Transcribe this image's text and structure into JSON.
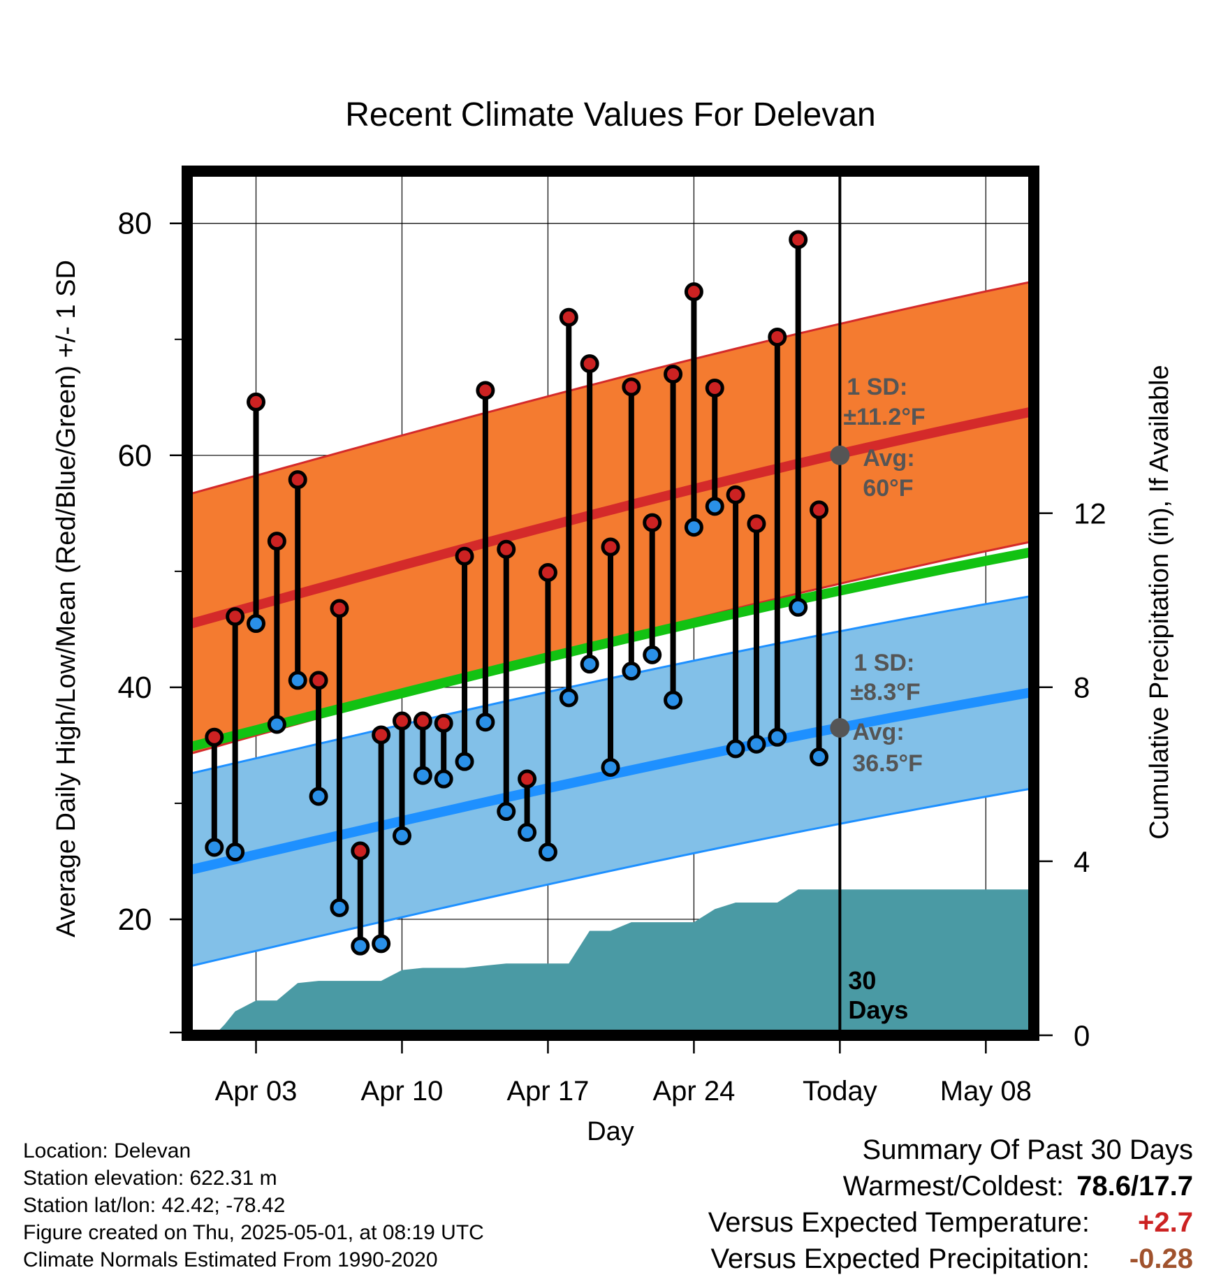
{
  "colors": {
    "high_band": "#f47b30",
    "high_line": "#d42a2a",
    "mean_line": "#12c212",
    "low_band": "#82c0e8",
    "low_line": "#1e90ff",
    "precip": "#4a9aa4",
    "high_dot": "#cc2222",
    "low_dot": "#2a90e8",
    "today_dot": "#555555",
    "annotation": "#555555",
    "temp_anomaly": "#cc2222",
    "precip_anomaly": "#a0522d"
  },
  "chart_data": {
    "type": "line",
    "title": "Recent Climate Values For Delevan",
    "xlabel": "Day",
    "ylabel": "Average Daily High/Low/Mean (Red/Blue/Green) +/- 1 SD",
    "y2label": "Cumulative Precipitation (in), If Available",
    "x_tick_labels": [
      "Apr 03",
      "Apr 10",
      "Apr 17",
      "Apr 24",
      "Today",
      "May 08"
    ],
    "x_tick_days": [
      3,
      10,
      17,
      24,
      31,
      38
    ],
    "xlim": [
      -0.3,
      40.3
    ],
    "ylim": [
      10,
      84.5
    ],
    "y_ticks": [
      20,
      40,
      60,
      80
    ],
    "y_minor_ticks": [
      30,
      50,
      70
    ],
    "y2lim": [
      0,
      19.86
    ],
    "y2_ticks": [
      0,
      4,
      8,
      12
    ],
    "grid": true,
    "today_day": 31,
    "today_label": [
      "30",
      "Days"
    ],
    "normal_high": {
      "start": 45.4,
      "end": 63.8,
      "sd": 11.2
    },
    "normal_low": {
      "start": 24.2,
      "end": 39.6,
      "sd": 8.3
    },
    "normal_mean": {
      "start": 34.8,
      "end": 51.7
    },
    "daily": [
      {
        "day": 1,
        "high": 35.7,
        "low": 26.2
      },
      {
        "day": 2,
        "high": 46.1,
        "low": 25.8
      },
      {
        "day": 3,
        "high": 64.6,
        "low": 45.5
      },
      {
        "day": 4,
        "high": 52.6,
        "low": 36.8
      },
      {
        "day": 5,
        "high": 57.9,
        "low": 40.6
      },
      {
        "day": 6,
        "high": 40.6,
        "low": 30.6
      },
      {
        "day": 7,
        "high": 46.8,
        "low": 21.0
      },
      {
        "day": 8,
        "high": 25.9,
        "low": 17.7
      },
      {
        "day": 9,
        "high": 35.9,
        "low": 17.9
      },
      {
        "day": 10,
        "high": 37.1,
        "low": 27.2
      },
      {
        "day": 11,
        "high": 37.1,
        "low": 32.4
      },
      {
        "day": 12,
        "high": 36.9,
        "low": 32.1
      },
      {
        "day": 13,
        "high": 51.3,
        "low": 33.6
      },
      {
        "day": 14,
        "high": 65.6,
        "low": 37.0
      },
      {
        "day": 15,
        "high": 51.9,
        "low": 29.3
      },
      {
        "day": 16,
        "high": 32.1,
        "low": 27.5
      },
      {
        "day": 17,
        "high": 49.9,
        "low": 25.8
      },
      {
        "day": 18,
        "high": 71.9,
        "low": 39.1
      },
      {
        "day": 19,
        "high": 67.9,
        "low": 42.0
      },
      {
        "day": 20,
        "high": 52.1,
        "low": 33.1
      },
      {
        "day": 21,
        "high": 65.9,
        "low": 41.4
      },
      {
        "day": 22,
        "high": 54.2,
        "low": 42.8
      },
      {
        "day": 23,
        "high": 67.0,
        "low": 38.9
      },
      {
        "day": 24,
        "high": 74.1,
        "low": 53.8
      },
      {
        "day": 25,
        "high": 65.8,
        "low": 55.6
      },
      {
        "day": 26,
        "high": 56.6,
        "low": 34.7
      },
      {
        "day": 27,
        "high": 54.1,
        "low": 35.1
      },
      {
        "day": 28,
        "high": 70.2,
        "low": 35.7
      },
      {
        "day": 29,
        "high": 78.6,
        "low": 46.9
      },
      {
        "day": 30,
        "high": 55.3,
        "low": 34.0
      }
    ],
    "precip_cumulative": [
      {
        "day": 1,
        "value": 0.0
      },
      {
        "day": 1.5,
        "value": 0.25
      },
      {
        "day": 2,
        "value": 0.55
      },
      {
        "day": 3,
        "value": 0.8
      },
      {
        "day": 4,
        "value": 0.8
      },
      {
        "day": 5,
        "value": 1.2
      },
      {
        "day": 6,
        "value": 1.25
      },
      {
        "day": 7,
        "value": 1.25
      },
      {
        "day": 9,
        "value": 1.25
      },
      {
        "day": 10,
        "value": 1.5
      },
      {
        "day": 11,
        "value": 1.55
      },
      {
        "day": 13,
        "value": 1.55
      },
      {
        "day": 14,
        "value": 1.6
      },
      {
        "day": 15,
        "value": 1.65
      },
      {
        "day": 17,
        "value": 1.65
      },
      {
        "day": 18,
        "value": 1.65
      },
      {
        "day": 19,
        "value": 2.4
      },
      {
        "day": 20,
        "value": 2.4
      },
      {
        "day": 21,
        "value": 2.6
      },
      {
        "day": 22,
        "value": 2.6
      },
      {
        "day": 24,
        "value": 2.6
      },
      {
        "day": 25,
        "value": 2.9
      },
      {
        "day": 26,
        "value": 3.05
      },
      {
        "day": 28,
        "value": 3.05
      },
      {
        "day": 29,
        "value": 3.35
      },
      {
        "day": 31,
        "value": 3.35
      },
      {
        "day": 40.3,
        "value": 3.35
      }
    ]
  },
  "annotations": {
    "high_sd_label": "1 SD:",
    "high_sd_value": "±11.2°F",
    "high_avg_label": "Avg:",
    "high_avg_value": "60°F",
    "low_sd_label": "1 SD:",
    "low_sd_value": "±8.3°F",
    "low_avg_label": "Avg:",
    "low_avg_value": "36.5°F",
    "today_avg_high": 60,
    "today_avg_low": 36.5
  },
  "footer": {
    "location": "Location: Delevan",
    "elevation": "Station elevation: 622.31 m",
    "latlon": "Station lat/lon: 42.42; -78.42",
    "created": "Figure created on Thu, 2025-05-01, at 08:19 UTC",
    "normals": "Climate Normals Estimated From 1990-2020"
  },
  "summary": {
    "title": "Summary Of Past 30 Days",
    "warmest_coldest_label": "Warmest/Coldest:",
    "warmest_coldest_value": "78.6/17.7",
    "temp_label": "Versus Expected Temperature:",
    "temp_value": "+2.7",
    "precip_label": "Versus Expected Precipitation:",
    "precip_value": "-0.28"
  }
}
